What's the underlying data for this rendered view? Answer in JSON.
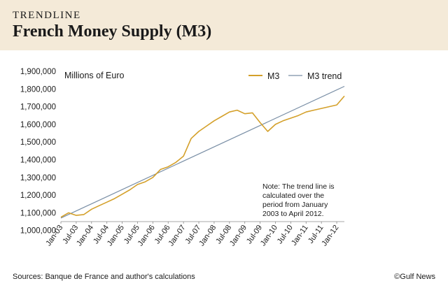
{
  "header": {
    "kicker": "TRENDLINE",
    "title": "French Money Supply (M3)"
  },
  "footer": {
    "sources": "Sources: Banque de France  and author's calculations",
    "credit": "©Gulf News"
  },
  "colors": {
    "header_bg": "#f4ead8",
    "m3": "#d4a02a",
    "trend": "#7a8fa6"
  },
  "chart_data": {
    "type": "line",
    "unit_label": "Millions of Euro",
    "ylim": [
      1050000,
      1900000
    ],
    "y_ticks": [
      1000000,
      1100000,
      1200000,
      1300000,
      1400000,
      1500000,
      1600000,
      1700000,
      1800000,
      1900000
    ],
    "y_tick_labels": [
      "1,000,000",
      "1,100,000",
      "1,200,000",
      "1,300,000",
      "1,400,000",
      "1,500,000",
      "1,600,000",
      "1,700,000",
      "1,800,000",
      "1,900,000"
    ],
    "x_tick_labels": [
      "Jan-03",
      "Jul-03",
      "Jan-04",
      "Jul-04",
      "Jan-05",
      "Jul-05",
      "Jan-06",
      "Jul-06",
      "Jan-07",
      "Jul-07",
      "Jan-08",
      "Jul-08",
      "Jan-09",
      "Jul-09",
      "Jan-10",
      "Jul-10",
      "Jan-11",
      "Jul-11",
      "Jan-12"
    ],
    "legend": {
      "position": "top-right"
    },
    "note": "Note: The trend line is calculated over the period from January 2003 to April 2012.",
    "series": [
      {
        "name": "M3",
        "x": [
          "Jan-03",
          "Apr-03",
          "Jul-03",
          "Oct-03",
          "Jan-04",
          "Apr-04",
          "Jul-04",
          "Oct-04",
          "Jan-05",
          "Apr-05",
          "Jul-05",
          "Oct-05",
          "Jan-06",
          "Apr-06",
          "Jul-06",
          "Oct-06",
          "Jan-07",
          "Apr-07",
          "Jul-07",
          "Oct-07",
          "Jan-08",
          "Apr-08",
          "Jul-08",
          "Oct-08",
          "Jan-09",
          "Apr-09",
          "Jul-09",
          "Oct-09",
          "Jan-10",
          "Apr-10",
          "Jul-10",
          "Oct-10",
          "Jan-11",
          "Apr-11",
          "Jul-11",
          "Oct-11",
          "Jan-12",
          "Apr-12"
        ],
        "values": [
          1075000,
          1100000,
          1085000,
          1090000,
          1120000,
          1140000,
          1160000,
          1180000,
          1205000,
          1230000,
          1260000,
          1275000,
          1300000,
          1345000,
          1360000,
          1385000,
          1420000,
          1520000,
          1560000,
          1590000,
          1620000,
          1645000,
          1670000,
          1680000,
          1660000,
          1665000,
          1610000,
          1560000,
          1600000,
          1620000,
          1635000,
          1650000,
          1670000,
          1680000,
          1690000,
          1700000,
          1710000,
          1760000
        ]
      },
      {
        "name": "M3 trend",
        "x": [
          "Jan-03",
          "Apr-12"
        ],
        "values": [
          1070000,
          1815000
        ]
      }
    ]
  }
}
